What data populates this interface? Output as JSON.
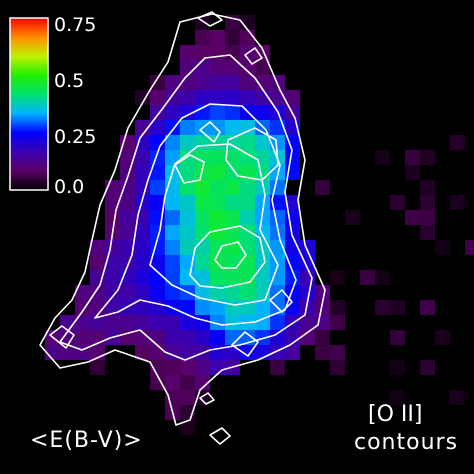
{
  "chart_data": {
    "type": "heatmap",
    "colormap": [
      "#000000",
      "#5a0066",
      "#3a00b0",
      "#0000ff",
      "#00b4ff",
      "#00e070",
      "#20f000",
      "#c0f000",
      "#ff8c00",
      "#ff0000"
    ],
    "colorbar": {
      "ticks": [
        "0.75",
        "0.5",
        "0.25",
        "0.0"
      ],
      "range": [
        0.0,
        0.8
      ]
    },
    "colorbar_label": "<E(B-V)>",
    "contour_label_line1": "[O II]",
    "contour_label_line2": "contours",
    "contour_color": "#ffffff"
  }
}
